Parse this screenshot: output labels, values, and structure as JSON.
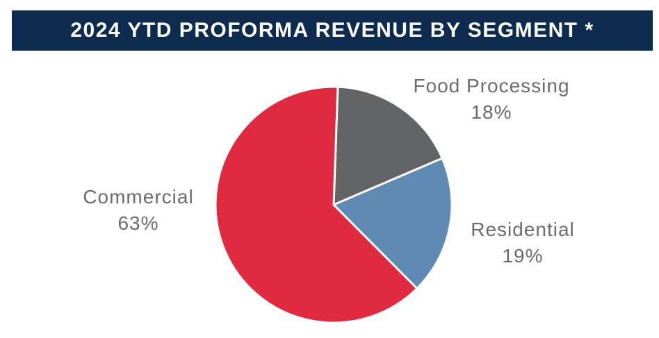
{
  "chart_data": {
    "type": "pie",
    "title": "2024 YTD PROFORMA REVENUE BY SEGMENT *",
    "start_angle_deg": 2,
    "slices": [
      {
        "label": "Food Processing",
        "value": 18,
        "value_label": "18%",
        "color": "#636466"
      },
      {
        "label": "Residential",
        "value": 19,
        "value_label": "19%",
        "color": "#5e8ab4"
      },
      {
        "label": "Commercial",
        "value": 63,
        "value_label": "63%",
        "color": "#e02a40"
      }
    ]
  },
  "colors": {
    "title_bar": "#0d2b4e",
    "title_text": "#ffffff",
    "label_text": "#6b6b6b"
  }
}
